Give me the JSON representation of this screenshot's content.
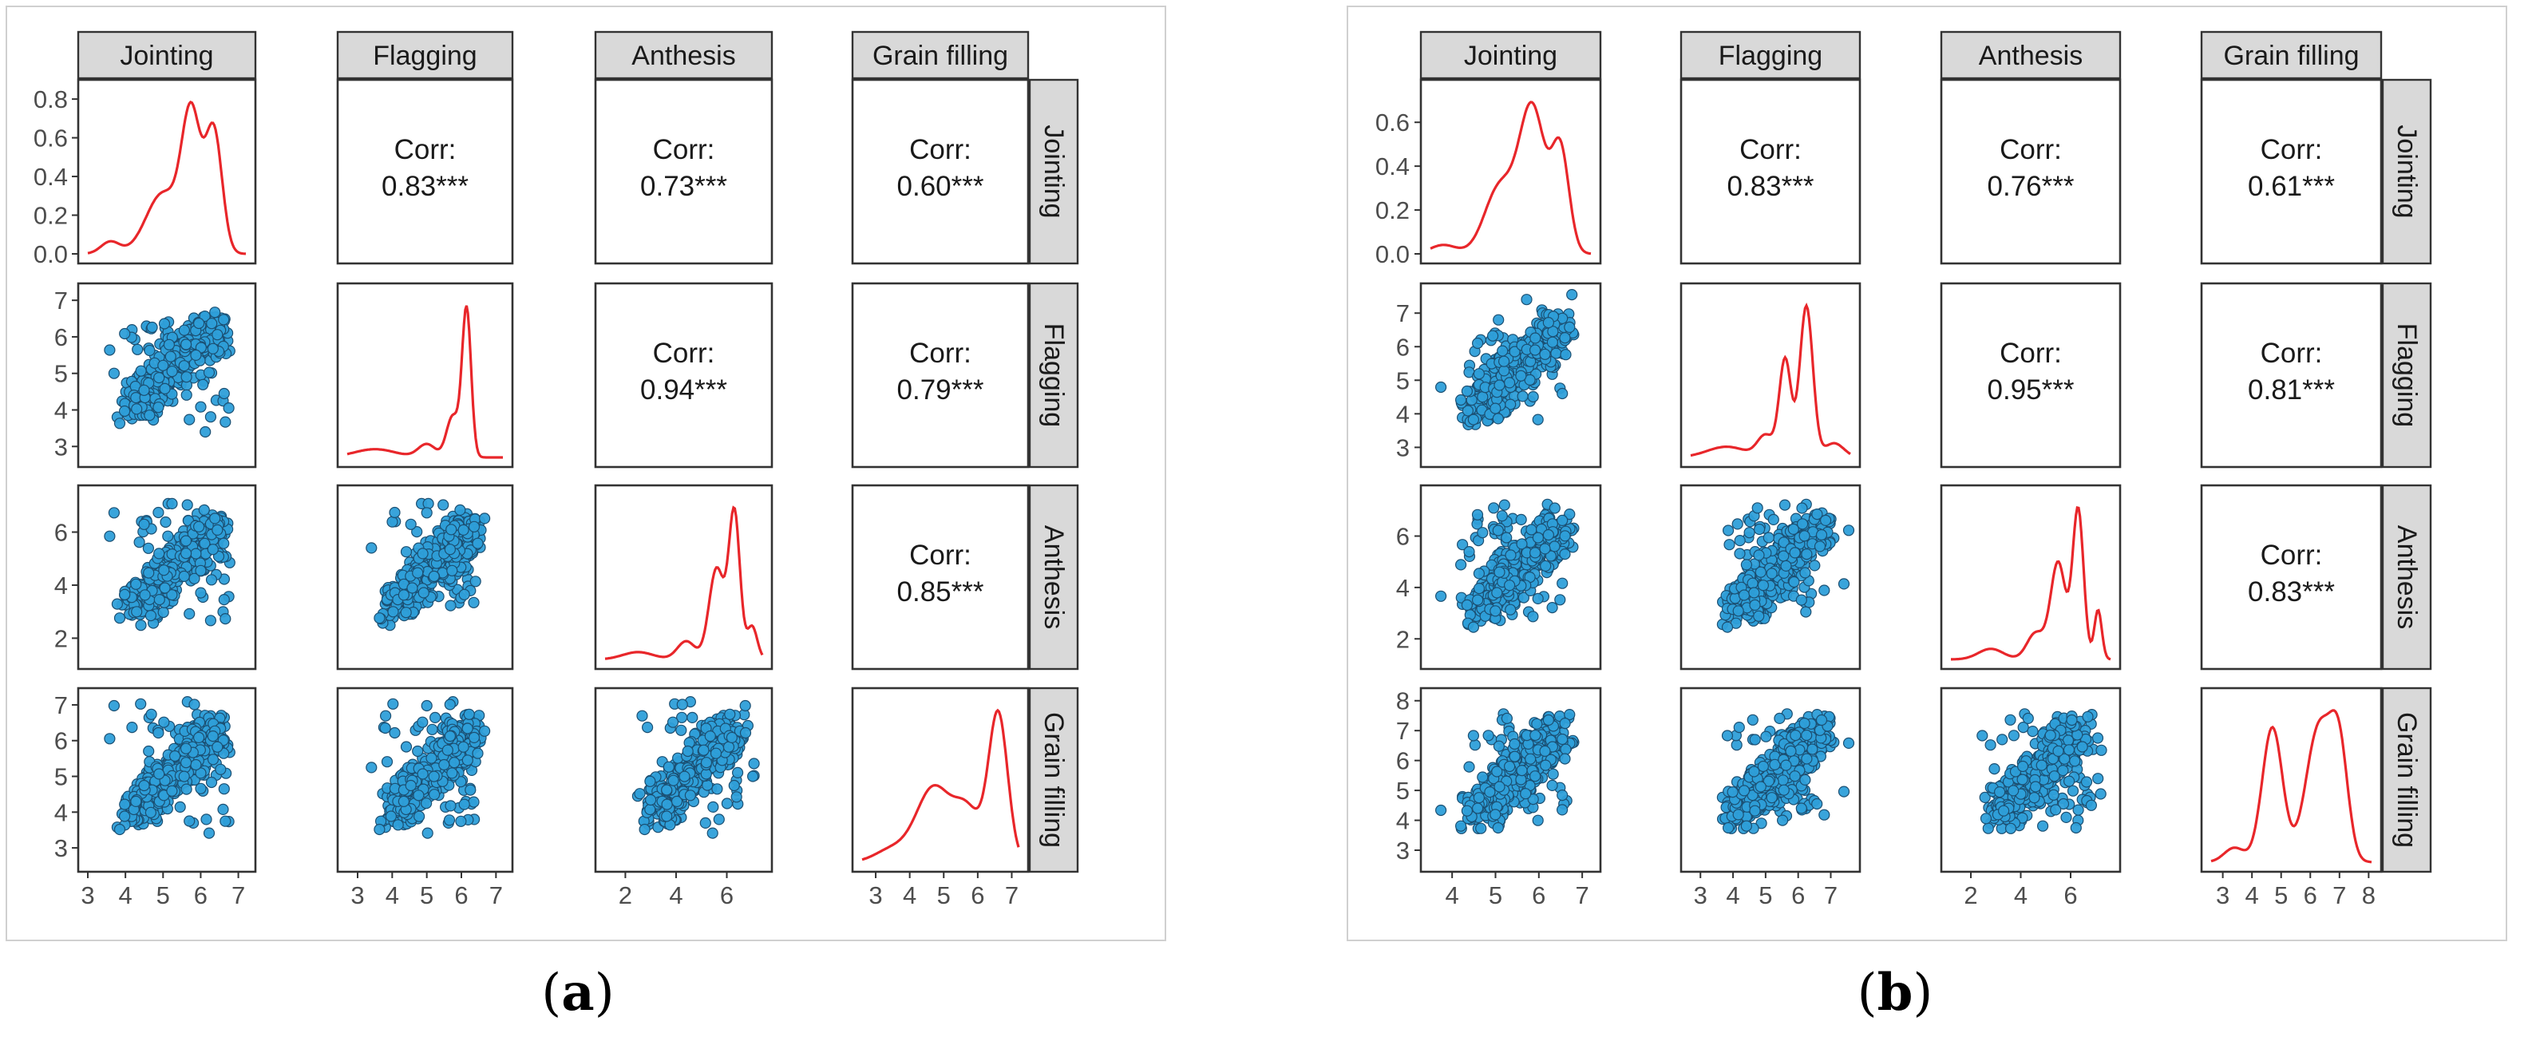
{
  "chart_data": [
    {
      "type": "scatter-matrix",
      "caption": "a",
      "variables": [
        "Jointing",
        "Flagging",
        "Anthesis",
        "Grain filling"
      ],
      "density_color": "#e8262a",
      "point_color": "#2e9fd9",
      "point_edge_color": "#1b4f72",
      "x_ticks": [
        [
          "3",
          "4",
          "5",
          "6",
          "7"
        ],
        [
          "3",
          "4",
          "5",
          "6",
          "7"
        ],
        [
          "2",
          "4",
          "6"
        ],
        [
          "3",
          "4",
          "5",
          "6",
          "7"
        ]
      ],
      "y_ticks": [
        [
          "0.0",
          "0.2",
          "0.4",
          "0.6",
          "0.8"
        ],
        [
          "3",
          "4",
          "5",
          "6",
          "7"
        ],
        [
          "2",
          "4",
          "6"
        ],
        [
          "3",
          "4",
          "5",
          "6",
          "7"
        ]
      ],
      "correlations": [
        {
          "row": 0,
          "col": 1,
          "label": "Corr:",
          "value": "0.83***"
        },
        {
          "row": 0,
          "col": 2,
          "label": "Corr:",
          "value": "0.73***"
        },
        {
          "row": 0,
          "col": 3,
          "label": "Corr:",
          "value": "0.60***"
        },
        {
          "row": 1,
          "col": 2,
          "label": "Corr:",
          "value": "0.94***"
        },
        {
          "row": 1,
          "col": 3,
          "label": "Corr:",
          "value": "0.79***"
        },
        {
          "row": 2,
          "col": 3,
          "label": "Corr:",
          "value": "0.85***"
        }
      ]
    },
    {
      "type": "scatter-matrix",
      "caption": "b",
      "variables": [
        "Jointing",
        "Flagging",
        "Anthesis",
        "Grain filling"
      ],
      "density_color": "#e8262a",
      "point_color": "#2e9fd9",
      "point_edge_color": "#1b4f72",
      "x_ticks": [
        [
          "4",
          "5",
          "6",
          "7"
        ],
        [
          "3",
          "4",
          "5",
          "6",
          "7"
        ],
        [
          "2",
          "4",
          "6"
        ],
        [
          "3",
          "4",
          "5",
          "6",
          "7",
          "8"
        ]
      ],
      "y_ticks": [
        [
          "0.0",
          "0.2",
          "0.4",
          "0.6"
        ],
        [
          "3",
          "4",
          "5",
          "6",
          "7"
        ],
        [
          "2",
          "4",
          "6"
        ],
        [
          "3",
          "4",
          "5",
          "6",
          "7",
          "8"
        ]
      ],
      "correlations": [
        {
          "row": 0,
          "col": 1,
          "label": "Corr:",
          "value": "0.83***"
        },
        {
          "row": 0,
          "col": 2,
          "label": "Corr:",
          "value": "0.76***"
        },
        {
          "row": 0,
          "col": 3,
          "label": "Corr:",
          "value": "0.61***"
        },
        {
          "row": 1,
          "col": 2,
          "label": "Corr:",
          "value": "0.95***"
        },
        {
          "row": 1,
          "col": 3,
          "label": "Corr:",
          "value": "0.81***"
        },
        {
          "row": 2,
          "col": 3,
          "label": "Corr:",
          "value": "0.83***"
        }
      ]
    }
  ]
}
